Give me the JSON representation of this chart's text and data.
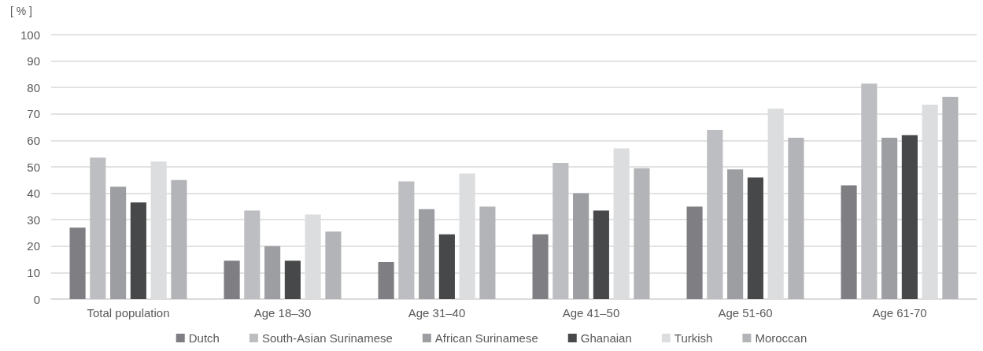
{
  "chart_data": {
    "type": "bar",
    "ylabel": "[ % ]",
    "categories": [
      "Total population",
      "Age 18–30",
      "Age 31–40",
      "Age 41–50",
      "Age 51-60",
      "Age 61-70"
    ],
    "series": [
      {
        "name": "Dutch",
        "color": "#7f7f83",
        "values": [
          27,
          14.5,
          14,
          24.5,
          35,
          43
        ]
      },
      {
        "name": "South-Asian Surinamese",
        "color": "#bdbec1",
        "values": [
          53.5,
          33.5,
          44.5,
          51.5,
          64,
          81.5
        ]
      },
      {
        "name": "African Surinamese",
        "color": "#9d9ea1",
        "values": [
          42.5,
          20,
          34,
          40,
          49,
          61
        ]
      },
      {
        "name": "Ghanaian",
        "color": "#47484a",
        "values": [
          36.5,
          14.5,
          24.5,
          33.5,
          46,
          62
        ]
      },
      {
        "name": "Turkish",
        "color": "#dcdddf",
        "values": [
          52,
          32,
          47.5,
          57,
          72,
          73.5
        ]
      },
      {
        "name": "Moroccan",
        "color": "#b3b4b7",
        "values": [
          45,
          25.5,
          35,
          49.5,
          61,
          76.5
        ]
      }
    ],
    "ylim": [
      0,
      100
    ],
    "yticks": [
      0,
      10,
      20,
      30,
      40,
      50,
      60,
      70,
      80,
      90,
      100
    ],
    "grid": "y",
    "legend": "bottom"
  }
}
